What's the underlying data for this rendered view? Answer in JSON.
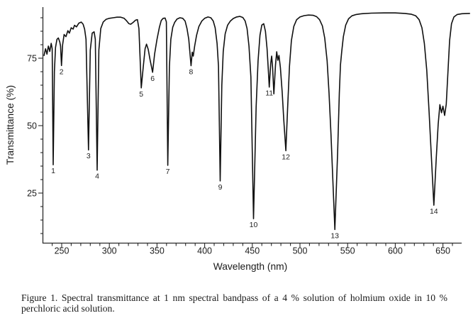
{
  "figure": {
    "caption_line1": "Figure 1.  Spectral transmittance at 1 nm spectral bandpass of a 4 % solution of holmium oxide in 10 %",
    "caption_line2": "perchloric acid solution."
  },
  "chart_data": {
    "type": "line",
    "title": "",
    "xlabel": "Wavelength (nm)",
    "ylabel": "Transmittance (%)",
    "xlim": [
      230,
      670
    ],
    "ylim": [
      6,
      94
    ],
    "grid": false,
    "line_color": "#101010",
    "x_major_ticks": [
      250,
      300,
      350,
      400,
      450,
      500,
      550,
      600,
      650
    ],
    "x_minor_step": 10,
    "y_major_ticks": [
      25,
      50,
      75
    ],
    "y_minor_step": 5,
    "peaks": [
      {
        "label": "1",
        "wavelength_nm": 241.1,
        "transmittance_pct": 35.5
      },
      {
        "label": "2",
        "wavelength_nm": 249.8,
        "transmittance_pct": 72.3
      },
      {
        "label": "3",
        "wavelength_nm": 278.1,
        "transmittance_pct": 41.0
      },
      {
        "label": "4",
        "wavelength_nm": 287.2,
        "transmittance_pct": 33.5
      },
      {
        "label": "5",
        "wavelength_nm": 333.5,
        "transmittance_pct": 64.0
      },
      {
        "label": "6",
        "wavelength_nm": 345.4,
        "transmittance_pct": 69.8
      },
      {
        "label": "7",
        "wavelength_nm": 361.3,
        "transmittance_pct": 35.3
      },
      {
        "label": "8",
        "wavelength_nm": 385.7,
        "transmittance_pct": 72.2
      },
      {
        "label": "9",
        "wavelength_nm": 416.3,
        "transmittance_pct": 29.5
      },
      {
        "label": "10",
        "wavelength_nm": 451.3,
        "transmittance_pct": 15.5
      },
      {
        "label": "11",
        "wavelength_nm": 467.8,
        "transmittance_pct": 64.3
      },
      {
        "label": "12",
        "wavelength_nm": 485.2,
        "transmittance_pct": 40.7
      },
      {
        "label": "13",
        "wavelength_nm": 536.6,
        "transmittance_pct": 11.5
      },
      {
        "label": "14",
        "wavelength_nm": 640.5,
        "transmittance_pct": 20.5
      }
    ],
    "series": [
      {
        "points": [
          [
            231.5,
            76
          ],
          [
            233,
            78.5
          ],
          [
            234.5,
            76.5
          ],
          [
            236,
            79.5
          ],
          [
            237.5,
            77.5
          ],
          [
            239,
            80.5
          ],
          [
            240,
            78.5
          ],
          [
            241.1,
            35.5
          ],
          [
            242.3,
            70
          ],
          [
            243.5,
            79
          ],
          [
            245,
            82
          ],
          [
            246.5,
            82.5
          ],
          [
            248,
            81
          ],
          [
            248.8,
            79.5
          ],
          [
            249.8,
            72.3
          ],
          [
            251,
            80
          ],
          [
            252.5,
            83.8
          ],
          [
            254.5,
            83
          ],
          [
            256.5,
            85.2
          ],
          [
            258,
            84.3
          ],
          [
            260,
            86.3
          ],
          [
            262,
            85.8
          ],
          [
            263.5,
            87.2
          ],
          [
            265.5,
            86.6
          ],
          [
            268,
            88
          ],
          [
            270.5,
            88.4
          ],
          [
            272.5,
            87.6
          ],
          [
            274,
            85.8
          ],
          [
            275.5,
            82
          ],
          [
            278.1,
            41
          ],
          [
            280,
            78
          ],
          [
            282,
            84.3
          ],
          [
            284,
            84.8
          ],
          [
            285.3,
            82
          ],
          [
            287.2,
            33.5
          ],
          [
            289,
            78
          ],
          [
            291,
            86
          ],
          [
            293.5,
            88.4
          ],
          [
            296.5,
            89.4
          ],
          [
            300,
            89.8
          ],
          [
            304,
            90
          ],
          [
            308,
            90.2
          ],
          [
            312,
            90.2
          ],
          [
            315.5,
            89.8
          ],
          [
            318,
            88.9
          ],
          [
            320.5,
            87.8
          ],
          [
            322.5,
            87.6
          ],
          [
            325,
            88.3
          ],
          [
            327.5,
            89.1
          ],
          [
            329.5,
            89.3
          ],
          [
            331,
            86
          ],
          [
            333.5,
            64
          ],
          [
            335.5,
            71.5
          ],
          [
            337.5,
            78.5
          ],
          [
            339,
            80.2
          ],
          [
            340.8,
            78.3
          ],
          [
            342.8,
            74.3
          ],
          [
            345.4,
            69.8
          ],
          [
            347.5,
            76.5
          ],
          [
            350,
            82
          ],
          [
            352.5,
            86.5
          ],
          [
            354.5,
            89
          ],
          [
            356.5,
            89.8
          ],
          [
            358.5,
            89.9
          ],
          [
            359.8,
            88.5
          ],
          [
            361.3,
            35.3
          ],
          [
            363,
            72
          ],
          [
            364.5,
            82
          ],
          [
            366.5,
            86.5
          ],
          [
            368.5,
            88.3
          ],
          [
            371,
            89.5
          ],
          [
            374,
            90
          ],
          [
            377,
            89.8
          ],
          [
            379.5,
            88.8
          ],
          [
            381.5,
            86
          ],
          [
            383.3,
            82
          ],
          [
            385.7,
            72.2
          ],
          [
            387,
            77.2
          ],
          [
            388,
            75.8
          ],
          [
            389.5,
            79.5
          ],
          [
            391.5,
            83.5
          ],
          [
            394,
            86.8
          ],
          [
            397,
            88.8
          ],
          [
            400,
            89.8
          ],
          [
            403.5,
            90.3
          ],
          [
            406.5,
            90
          ],
          [
            409,
            88.8
          ],
          [
            411,
            86.3
          ],
          [
            413,
            80.5
          ],
          [
            414.5,
            72
          ],
          [
            416.3,
            29.5
          ],
          [
            418,
            65
          ],
          [
            419.5,
            77.5
          ],
          [
            421.5,
            84
          ],
          [
            424,
            87.2
          ],
          [
            427,
            88.8
          ],
          [
            430,
            89.7
          ],
          [
            433.5,
            90.3
          ],
          [
            437,
            90.5
          ],
          [
            440,
            90.1
          ],
          [
            442.5,
            88.8
          ],
          [
            444.5,
            86
          ],
          [
            446.5,
            79.5
          ],
          [
            448.5,
            68
          ],
          [
            451.3,
            15.5
          ],
          [
            454,
            57
          ],
          [
            456,
            74
          ],
          [
            458,
            83.5
          ],
          [
            460,
            87.3
          ],
          [
            462,
            87.8
          ],
          [
            463.8,
            85
          ],
          [
            465.5,
            78.5
          ],
          [
            466.8,
            70.5
          ],
          [
            467.8,
            64.3
          ],
          [
            469.3,
            73
          ],
          [
            470.3,
            75.8
          ],
          [
            471.3,
            71.5
          ],
          [
            472.6,
            61.8
          ],
          [
            474.3,
            72.5
          ],
          [
            475.6,
            77.4
          ],
          [
            476.8,
            74.2
          ],
          [
            478,
            76
          ],
          [
            479.5,
            71.5
          ],
          [
            481.3,
            62.5
          ],
          [
            483,
            52
          ],
          [
            485.2,
            40.7
          ],
          [
            487,
            56
          ],
          [
            489,
            72
          ],
          [
            491,
            81.5
          ],
          [
            493.5,
            86.8
          ],
          [
            496.5,
            89.3
          ],
          [
            500,
            90.3
          ],
          [
            504.5,
            90.8
          ],
          [
            509,
            91
          ],
          [
            514,
            90.9
          ],
          [
            517.5,
            90.4
          ],
          [
            520.5,
            89.3
          ],
          [
            523.5,
            87
          ],
          [
            526,
            82.5
          ],
          [
            528.5,
            74
          ],
          [
            530.5,
            62
          ],
          [
            532.5,
            47
          ],
          [
            536.6,
            11.5
          ],
          [
            539.5,
            40
          ],
          [
            541.3,
            62
          ],
          [
            542.5,
            72.5
          ],
          [
            543.8,
            77.5
          ],
          [
            545.5,
            83
          ],
          [
            548,
            87.3
          ],
          [
            551,
            89.6
          ],
          [
            554.5,
            90.7
          ],
          [
            559,
            91.2
          ],
          [
            565,
            91.5
          ],
          [
            575,
            91.7
          ],
          [
            588,
            91.8
          ],
          [
            600,
            91.8
          ],
          [
            610,
            91.6
          ],
          [
            617,
            91.3
          ],
          [
            621.5,
            90.7
          ],
          [
            625,
            89.3
          ],
          [
            628,
            86.3
          ],
          [
            630.5,
            80.5
          ],
          [
            633,
            70.5
          ],
          [
            635.5,
            55
          ],
          [
            640.5,
            20.5
          ],
          [
            643,
            38
          ],
          [
            645,
            50.5
          ],
          [
            646.8,
            57.8
          ],
          [
            648.5,
            54.8
          ],
          [
            650,
            57.2
          ],
          [
            651.8,
            53.8
          ],
          [
            653.5,
            58
          ],
          [
            655.3,
            70
          ],
          [
            657,
            81.5
          ],
          [
            659,
            87.8
          ],
          [
            661.5,
            90.3
          ],
          [
            665,
            91.2
          ],
          [
            670,
            91.5
          ],
          [
            678,
            91.6
          ]
        ]
      }
    ]
  }
}
